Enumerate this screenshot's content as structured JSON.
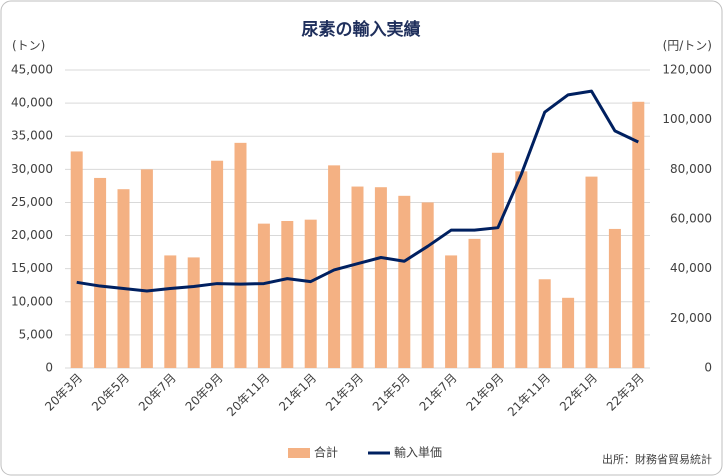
{
  "chart_data": {
    "type": "bar_line",
    "title": "尿素の輸入実績",
    "y_label": "(トン)",
    "y2_label": "(円/トン)",
    "source": "出所：財務省貿易統計",
    "categories": [
      "20年3月",
      null,
      "20年5月",
      null,
      "20年7月",
      null,
      "20年9月",
      null,
      "20年11月",
      null,
      "21年1月",
      null,
      "21年3月",
      null,
      "21年5月",
      null,
      "21年7月",
      null,
      "21年9月",
      null,
      "21年11月",
      null,
      "22年1月",
      null,
      "22年3月"
    ],
    "series": [
      {
        "name": "合計",
        "type": "bar",
        "color": "#f4b183",
        "axis": "y",
        "values": [
          32700,
          28700,
          27000,
          30000,
          17000,
          16700,
          31300,
          34000,
          21800,
          22200,
          22400,
          30600,
          27400,
          27300,
          26000,
          25000,
          17000,
          19500,
          32500,
          29700,
          13400,
          10600,
          28900,
          21000,
          40200
        ]
      },
      {
        "name": "輸入単価",
        "type": "line",
        "color": "#002060",
        "axis": "y2",
        "values": [
          34500,
          33000,
          32000,
          31000,
          32000,
          32800,
          34000,
          33800,
          34000,
          36000,
          34800,
          39500,
          42000,
          44500,
          43000,
          49000,
          55500,
          55500,
          56500,
          78000,
          103000,
          110000,
          111500,
          95500,
          91000
        ]
      }
    ],
    "ylim": [
      0,
      45000
    ],
    "yticks": [
      0,
      {
        "value": 5000,
        "label": "5,000"
      },
      {
        "value": 10000,
        "label": "10,000"
      },
      {
        "value": 15000,
        "label": "15,000"
      },
      {
        "value": 20000,
        "label": "20,000"
      },
      {
        "value": 25000,
        "label": "25,000"
      },
      {
        "value": 30000,
        "label": "30,000"
      },
      {
        "value": 35000,
        "label": "35,000"
      },
      {
        "value": 40000,
        "label": "40,000"
      },
      {
        "value": 45000,
        "label": "45,000"
      }
    ],
    "y2lim": [
      0,
      120000
    ],
    "y2ticks": [
      0,
      {
        "value": 20000,
        "label": "20,000"
      },
      {
        "value": 40000,
        "label": "40,000"
      },
      {
        "value": 60000,
        "label": "60,000"
      },
      {
        "value": 80000,
        "label": "80,000"
      },
      {
        "value": 100000,
        "label": "100,000"
      },
      {
        "value": 120000,
        "label": "120,000"
      }
    ],
    "grid": true
  }
}
